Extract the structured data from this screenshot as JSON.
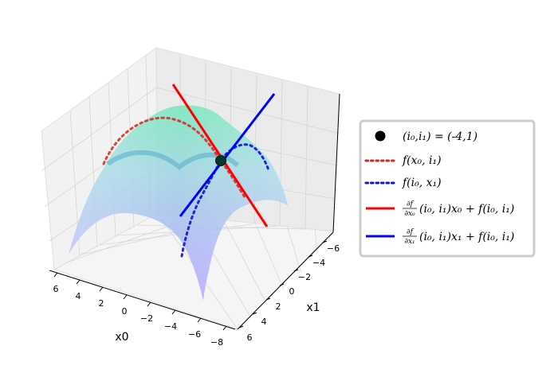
{
  "chart_data": {
    "type": "surface-3d",
    "function": "f(x0, x1) = -(x0^2 + x1^2)",
    "x0": {
      "label": "x0",
      "ticks": [
        "6",
        "4",
        "2",
        "0",
        "−2",
        "−4",
        "−6",
        "−8"
      ],
      "range": [
        -8,
        7
      ]
    },
    "x1": {
      "label": "x1",
      "ticks": [
        "−6",
        "−4",
        "−2",
        "0",
        "2",
        "4",
        "6"
      ],
      "range": [
        -7,
        7
      ]
    },
    "point": {
      "i0": -4,
      "i1": 1
    },
    "series": [
      {
        "name": "(i0,i1) = (-4,1)",
        "style": "marker",
        "color": "#000000"
      },
      {
        "name": "f(x0,i1)",
        "style": "dotted",
        "color": "#dd2222"
      },
      {
        "name": "f(i0,x1)",
        "style": "dotted",
        "color": "#1111dd"
      },
      {
        "name": "∂f/∂x0 (i0,i1) x0 + f(i0,i1)",
        "style": "solid",
        "color": "#ff0000"
      },
      {
        "name": "∂f/∂x1 (i0,i1) x1 + f(i0,i1)",
        "style": "solid",
        "color": "#0000ff"
      }
    ],
    "legend_position": "right",
    "grid": true
  },
  "legend": {
    "point_label": "(i₀,i₁) = (-4,1)",
    "f_x0_label": "f(x₀, i₁)",
    "f_x1_label": "f(i₀, x₁)",
    "tangent0_num": "∂f",
    "tangent0_den": "∂x₀",
    "tangent0_rest": "(i₀, i₁)x₀ + f(i₀, i₁)",
    "tangent1_num": "∂f",
    "tangent1_den": "∂x₁",
    "tangent1_rest": "(i₀, i₁)x₁ + f(i₀, i₁)"
  }
}
